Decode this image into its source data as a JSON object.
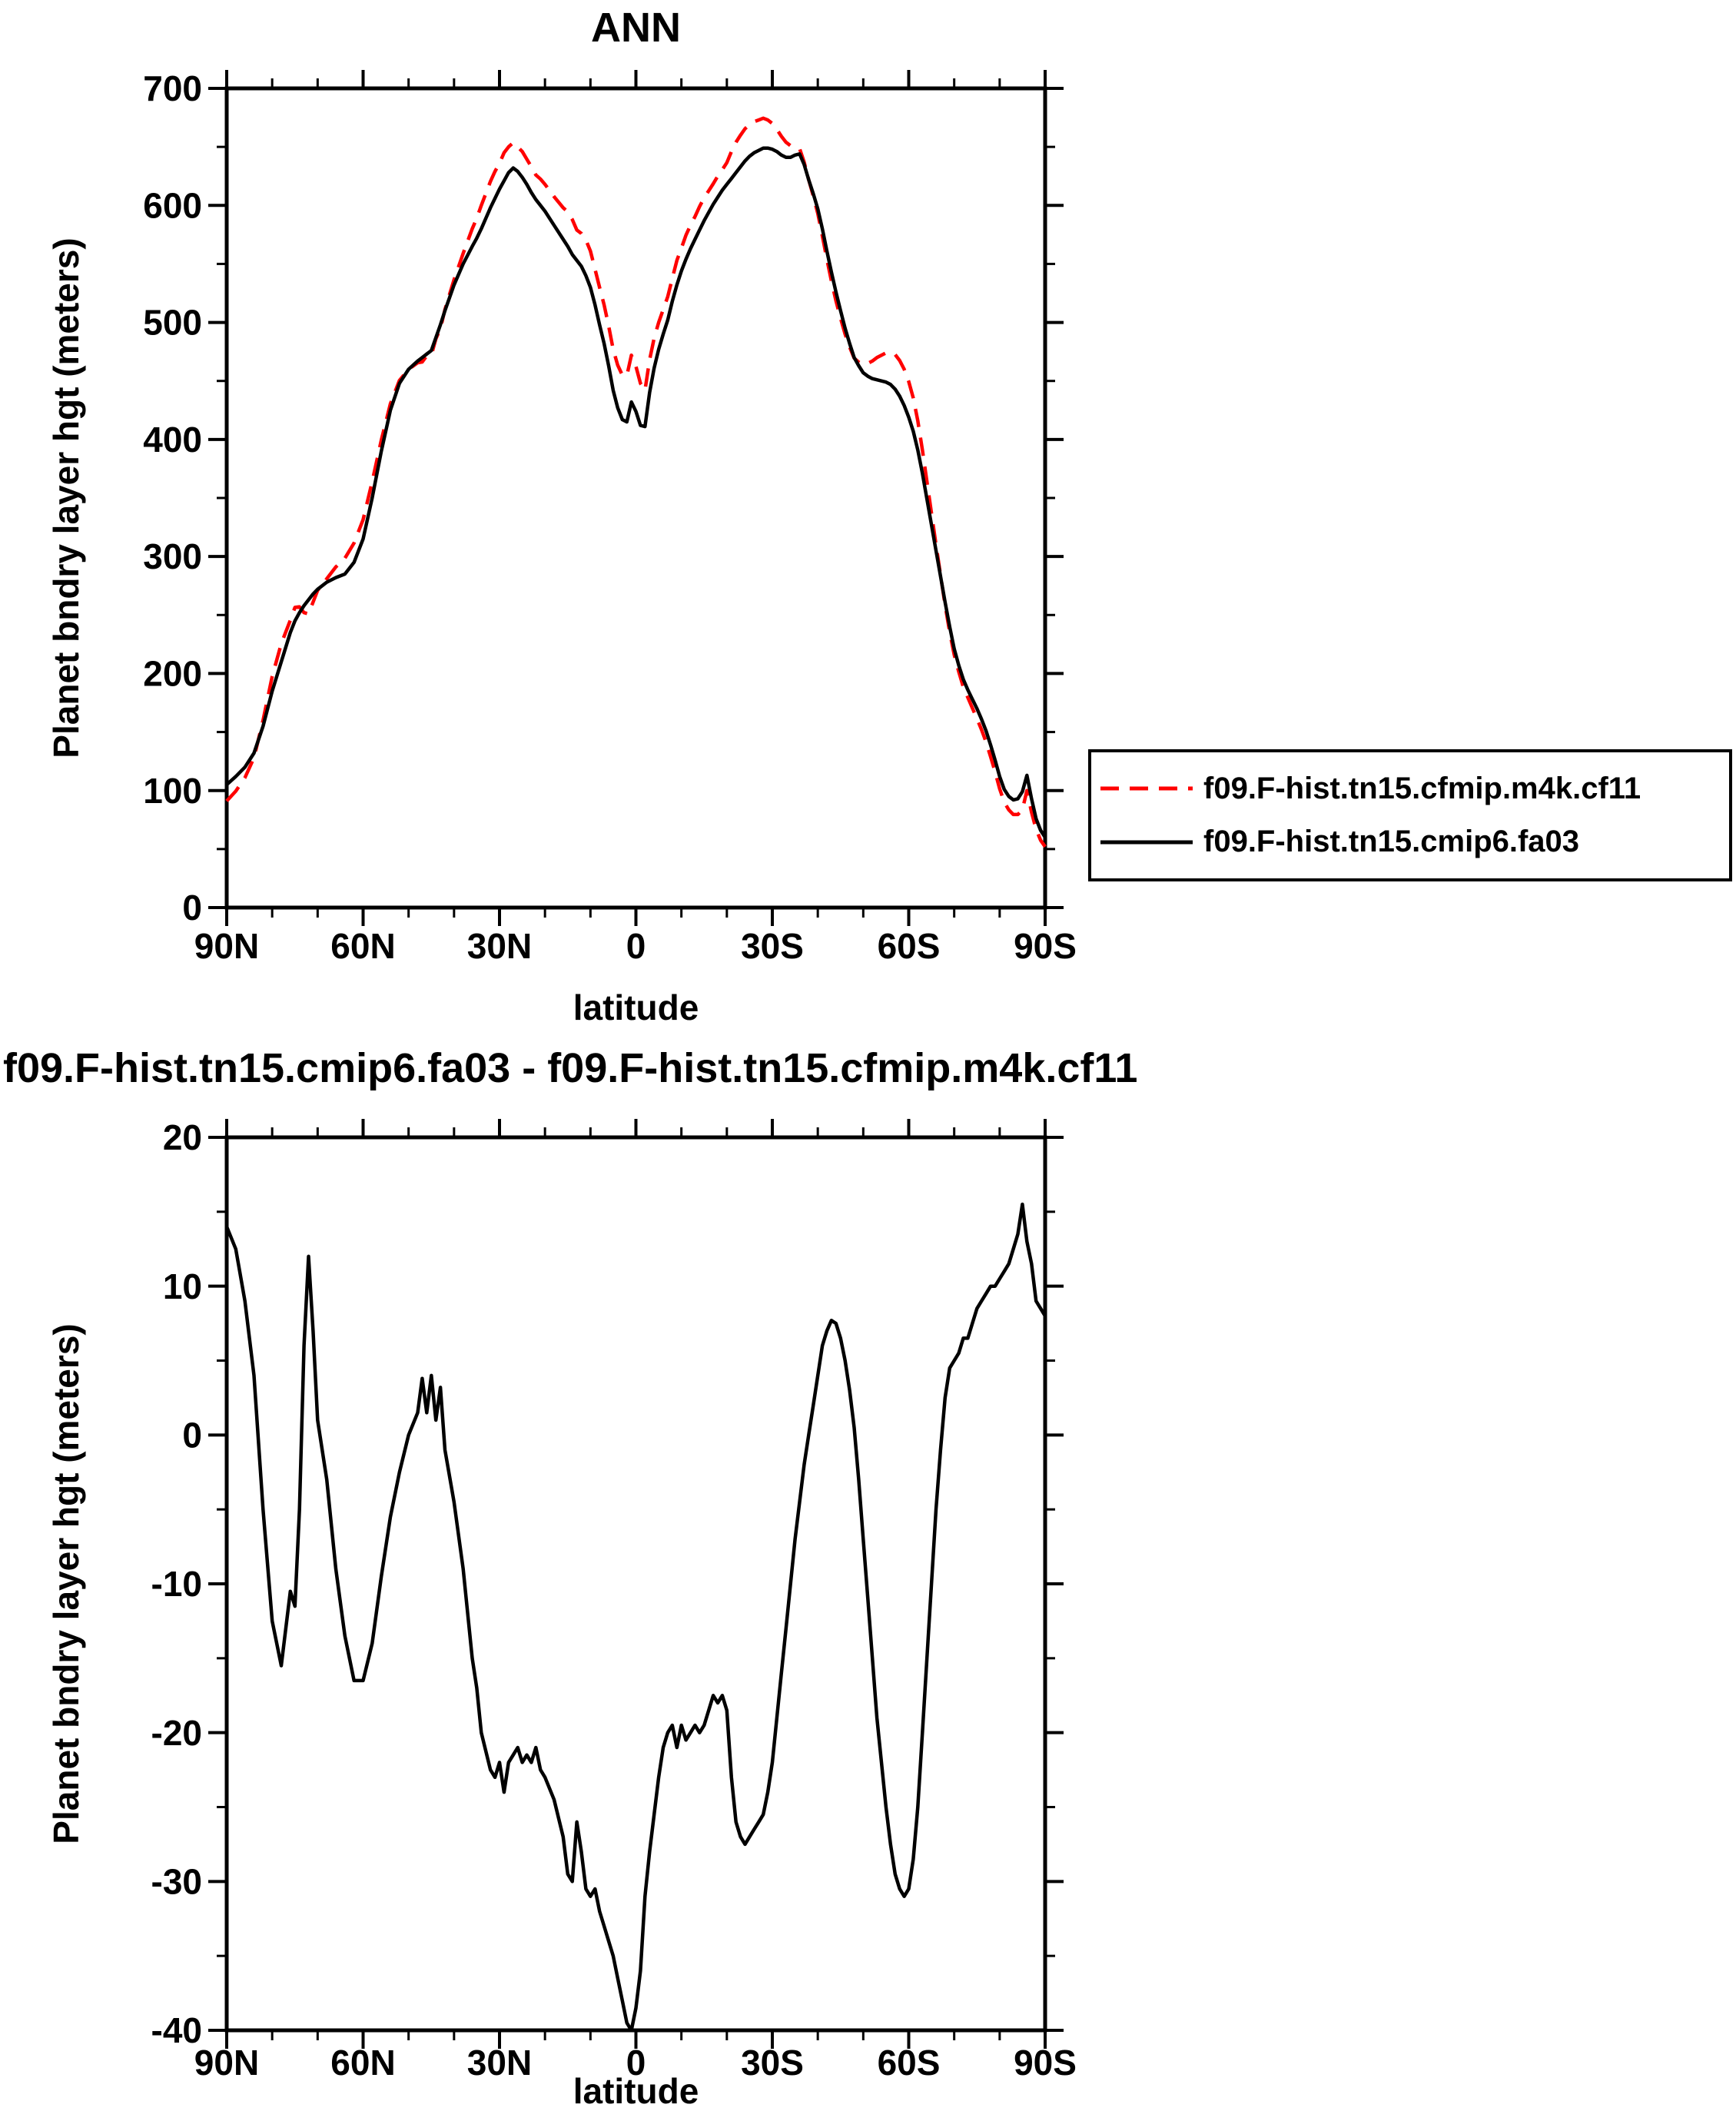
{
  "page": {
    "background": "#ffffff"
  },
  "chart_data": [
    {
      "id": "ann",
      "type": "line",
      "title": "ANN",
      "xlabel": "latitude",
      "ylabel": "Planet bndry layer hgt (meters)",
      "xlim": [
        90,
        -90
      ],
      "ylim": [
        0,
        700
      ],
      "xticks": {
        "values": [
          90,
          60,
          30,
          0,
          -30,
          -60,
          -90
        ],
        "labels": [
          "90N",
          "60N",
          "30N",
          "0",
          "30S",
          "60S",
          "90S"
        ]
      },
      "xminor_step": 10,
      "yticks": [
        0,
        100,
        200,
        300,
        400,
        500,
        600,
        700
      ],
      "yminor_step": 50,
      "grid": false,
      "legend_position": "right",
      "x": [
        90,
        88,
        86,
        84,
        82,
        80,
        78,
        76,
        75,
        74,
        73,
        72,
        71,
        70,
        68,
        66,
        64,
        62,
        60,
        58,
        56,
        54,
        52,
        50,
        48,
        47,
        46,
        45,
        44,
        43,
        42,
        40,
        38,
        36,
        35,
        34,
        32,
        31,
        30,
        29,
        28,
        27,
        26,
        25,
        24,
        23,
        22,
        21,
        20,
        18,
        16,
        15,
        14,
        13,
        12,
        11,
        10,
        9,
        8,
        7,
        6,
        5,
        4,
        3,
        2,
        1,
        0,
        -1,
        -2,
        -3,
        -4,
        -5,
        -6,
        -7,
        -8,
        -9,
        -10,
        -11,
        -12,
        -13,
        -14,
        -15,
        -16,
        -17,
        -18,
        -19,
        -20,
        -21,
        -22,
        -23,
        -24,
        -25,
        -26,
        -27,
        -28,
        -29,
        -30,
        -31,
        -32,
        -33,
        -34,
        -35,
        -36,
        -37,
        -38,
        -39,
        -40,
        -41,
        -42,
        -43,
        -44,
        -45,
        -46,
        -47,
        -48,
        -49,
        -50,
        -51,
        -52,
        -53,
        -54,
        -55,
        -56,
        -57,
        -58,
        -59,
        -60,
        -61,
        -62,
        -63,
        -64,
        -65,
        -66,
        -67,
        -68,
        -69,
        -70,
        -71,
        -72,
        -73,
        -74,
        -75,
        -76,
        -77,
        -78,
        -79,
        -80,
        -81,
        -82,
        -83,
        -84,
        -85,
        -86,
        -87,
        -88,
        -89,
        -90
      ],
      "series": [
        {
          "name": "f09.F-hist.tn15.cfmip.m4k.cf11",
          "color": "#ff0000",
          "style": "dashed",
          "values": [
            91,
            99.5,
            111,
            128,
            160,
            197.5,
            225.5,
            245.5,
            256.5,
            257,
            252,
            251,
            261,
            271,
            281,
            291,
            298.5,
            311.5,
            331.5,
            364,
            399.5,
            430.5,
            450.5,
            460,
            465.5,
            466.2,
            471.5,
            472,
            486,
            494.8,
            511,
            536.5,
            559,
            580,
            589,
            600,
            620.5,
            629,
            636,
            645,
            650,
            653.5,
            650,
            646,
            639.5,
            633,
            626,
            622.5,
            618,
            607.5,
            598,
            594.5,
            588,
            579,
            576,
            570.5,
            561,
            545.5,
            530,
            515,
            497,
            477,
            463.5,
            455,
            454.5,
            472,
            462.5,
            448,
            442,
            468,
            486.5,
            500,
            511,
            522,
            537.5,
            553,
            563.5,
            574.5,
            583,
            590.5,
            599,
            606.5,
            612.5,
            618.5,
            625,
            630.5,
            636.5,
            646,
            654,
            660,
            665.5,
            669,
            671.5,
            673,
            674.5,
            673,
            670,
            665,
            659,
            654,
            651,
            650,
            648.5,
            637,
            622,
            608,
            593,
            574,
            554,
            535.3,
            518.5,
            503.5,
            490,
            479,
            469.5,
            466,
            464,
            465,
            467,
            470,
            472,
            474,
            474.5,
            472.5,
            467.5,
            460,
            449.5,
            435.5,
            416,
            391,
            364,
            337,
            310,
            284,
            258.5,
            235.5,
            216,
            201.5,
            188.5,
            179.5,
            170.5,
            161.5,
            152,
            141.5,
            129,
            116,
            101.5,
            90,
            83.5,
            79.5,
            79.5,
            83.5,
            100,
            81.5,
            67,
            57.5,
            52
          ]
        },
        {
          "name": "f09.F-hist.tn15.cmip6.fa03",
          "color": "#000000",
          "style": "solid",
          "values": [
            105,
            112,
            120,
            132,
            155,
            185,
            210,
            235,
            245,
            252,
            258,
            263,
            268,
            272,
            278,
            282,
            285,
            295,
            315,
            350,
            390,
            425,
            448,
            460,
            467,
            470,
            473,
            476,
            487,
            498,
            510,
            532,
            550,
            565,
            572,
            580,
            598,
            606,
            614,
            621,
            628,
            632,
            629,
            624,
            618,
            611,
            605,
            600,
            595,
            583,
            571,
            565,
            558,
            553,
            548,
            540,
            530,
            515,
            498,
            482,
            463,
            442,
            427,
            417,
            415,
            432,
            424,
            412,
            411,
            440,
            461,
            477,
            490,
            502,
            518,
            532,
            544,
            554,
            563,
            571,
            579,
            587,
            594,
            601,
            607,
            613,
            618,
            623,
            628,
            633,
            638,
            642,
            645,
            647,
            649,
            649,
            648,
            646,
            643,
            641,
            641,
            643,
            644,
            635,
            622,
            610,
            597,
            580,
            561,
            543,
            526,
            510,
            495,
            482,
            470,
            463,
            457,
            454,
            452,
            451,
            450,
            449,
            447,
            443,
            437,
            429,
            419,
            407,
            391,
            371,
            349,
            327,
            305,
            283,
            261,
            240,
            221,
            207,
            195,
            186,
            178,
            170,
            161,
            151,
            139,
            126,
            112,
            101,
            95,
            92,
            93,
            99,
            113,
            93,
            76,
            66,
            60
          ]
        }
      ]
    },
    {
      "id": "diff",
      "type": "line",
      "title": "f09.F-hist.tn15.cmip6.fa03 - f09.F-hist.tn15.cfmip.m4k.cf11",
      "xlabel": "latitude",
      "ylabel": "Planet bndry layer hgt (meters)",
      "xlim": [
        90,
        -90
      ],
      "ylim": [
        -40,
        20
      ],
      "xticks": {
        "values": [
          90,
          60,
          30,
          0,
          -30,
          -60,
          -90
        ],
        "labels": [
          "90N",
          "60N",
          "30N",
          "0",
          "30S",
          "60S",
          "90S"
        ]
      },
      "xminor_step": 10,
      "yticks": [
        -40,
        -30,
        -20,
        -10,
        0,
        10,
        20
      ],
      "yminor_step": 5,
      "grid": false,
      "x": [
        90,
        88,
        86,
        84,
        82,
        80,
        78,
        76,
        75,
        74,
        73,
        72,
        71,
        70,
        68,
        66,
        64,
        62,
        60,
        58,
        56,
        54,
        52,
        50,
        48,
        47,
        46,
        45,
        44,
        43,
        42,
        40,
        38,
        36,
        35,
        34,
        32,
        31,
        30,
        29,
        28,
        27,
        26,
        25,
        24,
        23,
        22,
        21,
        20,
        18,
        16,
        15,
        14,
        13,
        12,
        11,
        10,
        9,
        8,
        7,
        6,
        5,
        4,
        3,
        2,
        1,
        0,
        -1,
        -2,
        -3,
        -4,
        -5,
        -6,
        -7,
        -8,
        -9,
        -10,
        -11,
        -12,
        -13,
        -14,
        -15,
        -16,
        -17,
        -18,
        -19,
        -20,
        -21,
        -22,
        -23,
        -24,
        -25,
        -26,
        -27,
        -28,
        -29,
        -30,
        -31,
        -32,
        -33,
        -34,
        -35,
        -36,
        -37,
        -38,
        -39,
        -40,
        -41,
        -42,
        -43,
        -44,
        -45,
        -46,
        -47,
        -48,
        -49,
        -50,
        -51,
        -52,
        -53,
        -54,
        -55,
        -56,
        -57,
        -58,
        -59,
        -60,
        -61,
        -62,
        -63,
        -64,
        -65,
        -66,
        -67,
        -68,
        -69,
        -70,
        -71,
        -72,
        -73,
        -74,
        -75,
        -76,
        -77,
        -78,
        -79,
        -80,
        -81,
        -82,
        -83,
        -84,
        -85,
        -86,
        -87,
        -88,
        -89,
        -90
      ],
      "series": [
        {
          "name": "f09.F-hist.tn15.cmip6.fa03 - f09.F-hist.tn15.cfmip.m4k.cf11",
          "color": "#000000",
          "style": "solid",
          "values": [
            14,
            12.5,
            9,
            4,
            -5,
            -12.5,
            -15.5,
            -10.5,
            -11.5,
            -5,
            6,
            12,
            7,
            1,
            -3,
            -9,
            -13.5,
            -16.5,
            -16.5,
            -14,
            -9.5,
            -5.5,
            -2.5,
            0,
            1.5,
            3.8,
            1.5,
            4,
            1,
            3.2,
            -1,
            -4.5,
            -9,
            -15,
            -17,
            -20,
            -22.5,
            -23,
            -22,
            -24,
            -22,
            -21.5,
            -21,
            -22,
            -21.5,
            -22,
            -21,
            -22.5,
            -23,
            -24.5,
            -27,
            -29.5,
            -30,
            -26,
            -28,
            -30.5,
            -31,
            -30.5,
            -32,
            -33,
            -34,
            -35,
            -36.5,
            -38,
            -39.5,
            -40,
            -38.5,
            -36,
            -31,
            -28,
            -25.5,
            -23,
            -21,
            -20,
            -19.5,
            -21,
            -19.5,
            -20.5,
            -20,
            -19.5,
            -20,
            -19.5,
            -18.5,
            -17.5,
            -18,
            -17.5,
            -18.5,
            -23,
            -26,
            -27,
            -27.5,
            -27,
            -26.5,
            -26,
            -25.5,
            -24,
            -22,
            -19,
            -16,
            -13,
            -10,
            -7,
            -4.5,
            -2,
            0,
            2,
            4,
            6,
            7,
            7.7,
            7.5,
            6.5,
            5,
            3,
            0.5,
            -3,
            -7,
            -11,
            -15,
            -19,
            -22,
            -25,
            -27.5,
            -29.5,
            -30.5,
            -31,
            -30.5,
            -28.5,
            -25,
            -20,
            -15,
            -10,
            -5,
            -1,
            2.5,
            4.5,
            5,
            5.5,
            6.5,
            6.5,
            7.5,
            8.5,
            9,
            9.5,
            10,
            10,
            10.5,
            11,
            11.5,
            12.5,
            13.5,
            15.5,
            13,
            11.5,
            9,
            8.5,
            8
          ]
        }
      ]
    }
  ]
}
